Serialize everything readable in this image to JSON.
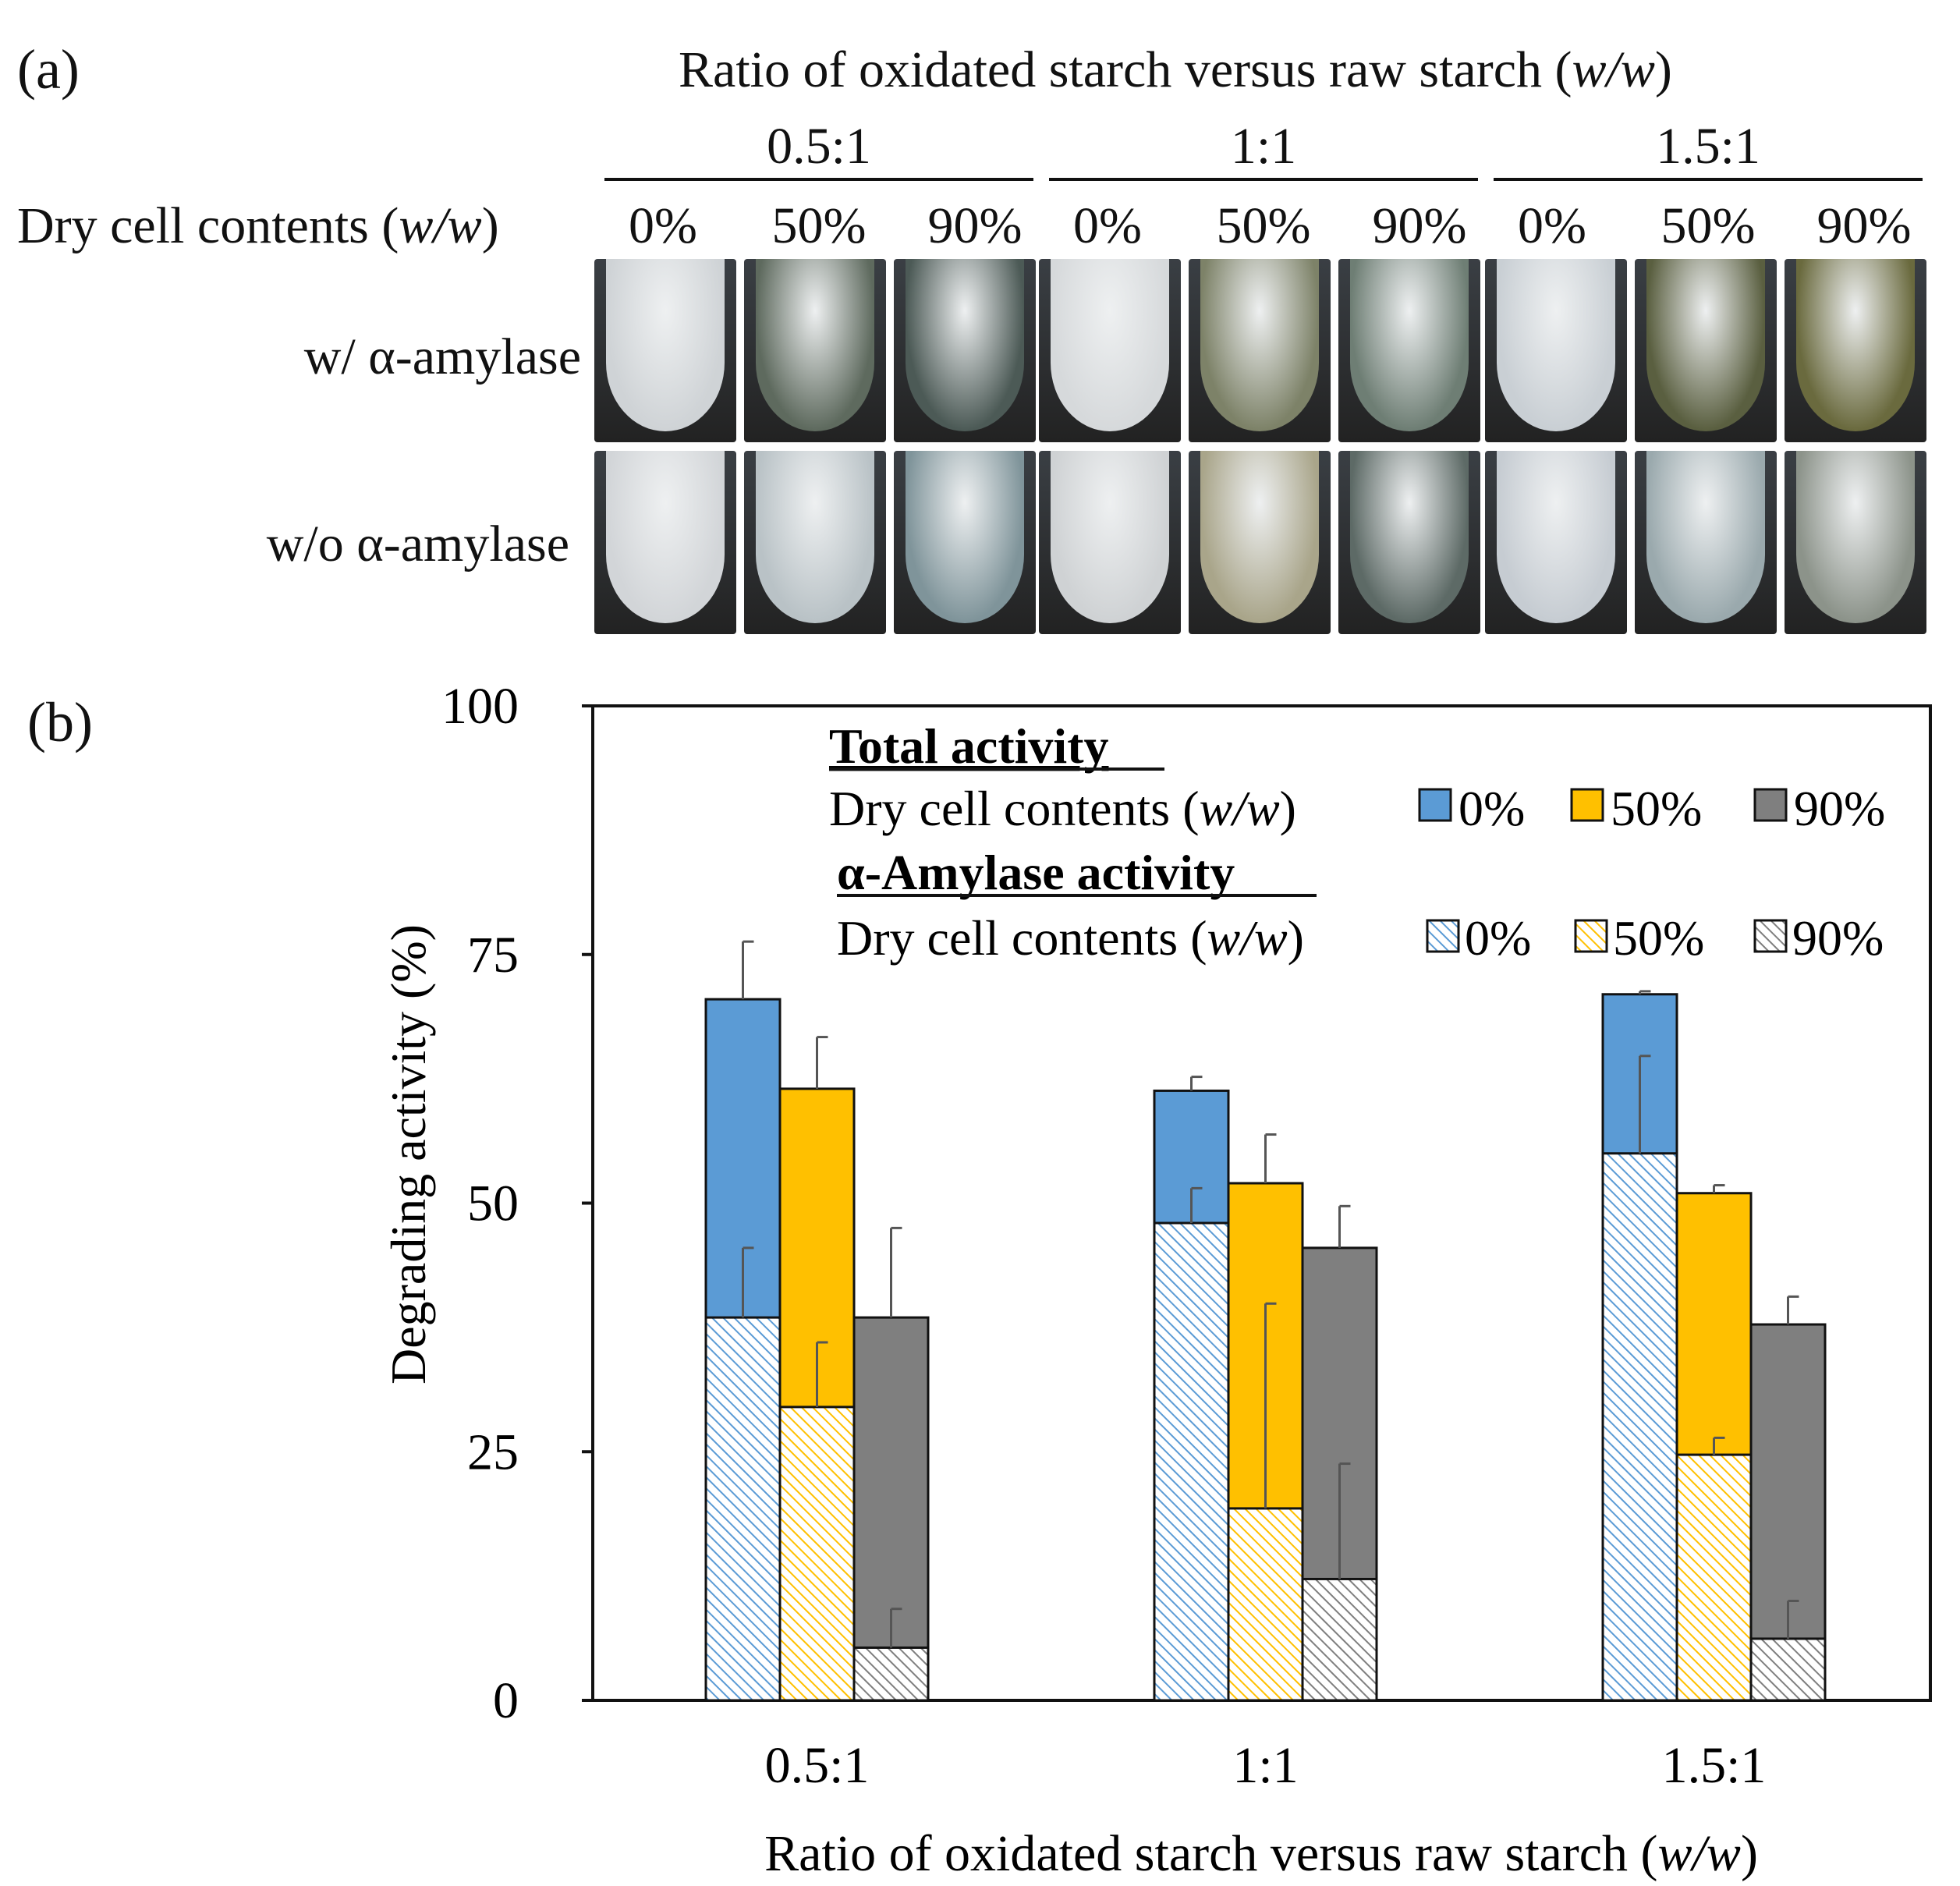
{
  "panel_a": {
    "label": "(a)",
    "title_main": "Ratio of oxidated starch versus raw starch (",
    "title_unit": "w/w",
    "title_close": ")",
    "ratios": [
      "0.5:1",
      "1:1",
      "1.5:1"
    ],
    "dcc_label_main": "Dry cell contents (",
    "dcc_label_unit": "w/w",
    "dcc_label_close": ")",
    "dcc_values": [
      "0%",
      "50%",
      "90%",
      "0%",
      "50%",
      "90%",
      "0%",
      "50%",
      "90%"
    ],
    "row_labels": [
      "w/ α-amylase",
      "w/o α-amylase"
    ]
  },
  "panel_b": {
    "label": "(b)"
  },
  "colors": {
    "blue": "#5b9bd5",
    "orange": "#ffc000",
    "gray": "#7f7f7f",
    "blue_hatch_bg": "#ffffff",
    "dark": "#111111"
  },
  "chart_data": {
    "type": "bar",
    "title": "",
    "xlabel_main": "Ratio of oxidated starch versus raw starch (",
    "xlabel_unit": "w/w",
    "xlabel_close": ")",
    "ylabel": "Degrading activity (%)",
    "ylim": [
      0,
      100
    ],
    "yticks": [
      0,
      25,
      50,
      75,
      100
    ],
    "categories": [
      "0.5:1",
      "1:1",
      "1.5:1"
    ],
    "legend": {
      "total_heading": "Total activity",
      "amylase_heading": "α-Amylase activity",
      "row_label_main": "Dry cell contents (",
      "row_label_unit": "w/w",
      "row_label_close": ")",
      "entries": [
        "0%",
        "50%",
        "90%"
      ]
    },
    "series": [
      {
        "name": "0%",
        "color": "#5b9bd5",
        "total": [
          70.5,
          61.3,
          71.0
        ],
        "total_err": [
          5.8,
          1.4,
          0.3
        ],
        "amylase": [
          38.5,
          48.0,
          55.0
        ],
        "amylase_err": [
          7.0,
          3.5,
          9.8
        ]
      },
      {
        "name": "50%",
        "color": "#ffc000",
        "total": [
          61.5,
          52.0,
          51.0
        ],
        "total_err": [
          5.2,
          4.9,
          0.8
        ],
        "amylase": [
          29.5,
          19.3,
          24.7
        ],
        "amylase_err": [
          6.5,
          20.6,
          1.7
        ]
      },
      {
        "name": "90%",
        "color": "#7f7f7f",
        "total": [
          38.5,
          45.5,
          37.8
        ],
        "total_err": [
          9.0,
          4.2,
          2.8
        ],
        "amylase": [
          5.3,
          12.2,
          6.2
        ],
        "amylase_err": [
          3.9,
          11.6,
          3.8
        ]
      }
    ]
  }
}
